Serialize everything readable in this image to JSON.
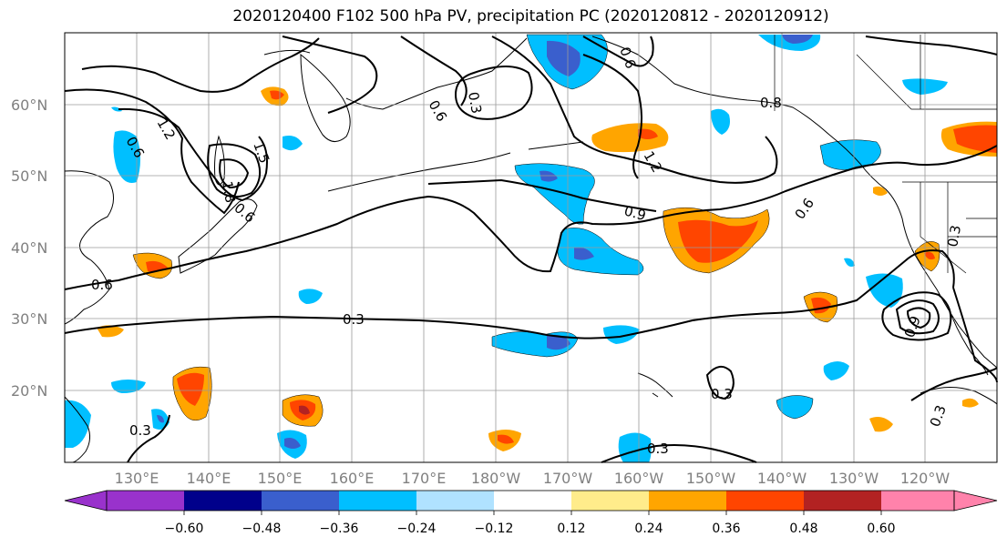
{
  "title": "2020120400 F102 500 hPa PV, precipitation PC (2020120812 - 2020120912)",
  "lat_labels": [
    "60°N",
    "50°N",
    "40°N",
    "30°N",
    "20°N"
  ],
  "lon_labels": [
    "130°E",
    "140°E",
    "150°E",
    "160°E",
    "170°E",
    "180°W",
    "170°W",
    "160°W",
    "150°W",
    "140°W",
    "130°W",
    "120°W"
  ],
  "contour_labels": [
    "1.2",
    "0.6",
    "1.5",
    "1.8",
    "0.6",
    "0.6",
    "0.3",
    "0.6",
    "0.8",
    "1.2",
    "0.9",
    "0.6",
    "0.6",
    "0.3",
    "0.3",
    "0.3",
    "0.3",
    "0.3",
    "0.9",
    "0.3"
  ],
  "colorbar": {
    "ticks": [
      "−0.60",
      "−0.48",
      "−0.36",
      "−0.24",
      "−0.12",
      "0.12",
      "0.24",
      "0.36",
      "0.48",
      "0.60"
    ],
    "colors": [
      "#9932cc",
      "#00008b",
      "#3a5fcd",
      "#00bfff",
      "#b0e2ff",
      "#ffffff",
      "#ffec8b",
      "#ffa500",
      "#ff4500",
      "#b22222",
      "#ff82ab"
    ]
  },
  "colors": {
    "neg_strong": "#3a5fcd",
    "neg": "#00bfff",
    "neg_light": "#b0e2ff",
    "pos_light": "#ffec8b",
    "pos": "#ffa500",
    "pos_strong": "#ff4500",
    "pos_max": "#b22222",
    "grid": "#9a9a9a"
  }
}
